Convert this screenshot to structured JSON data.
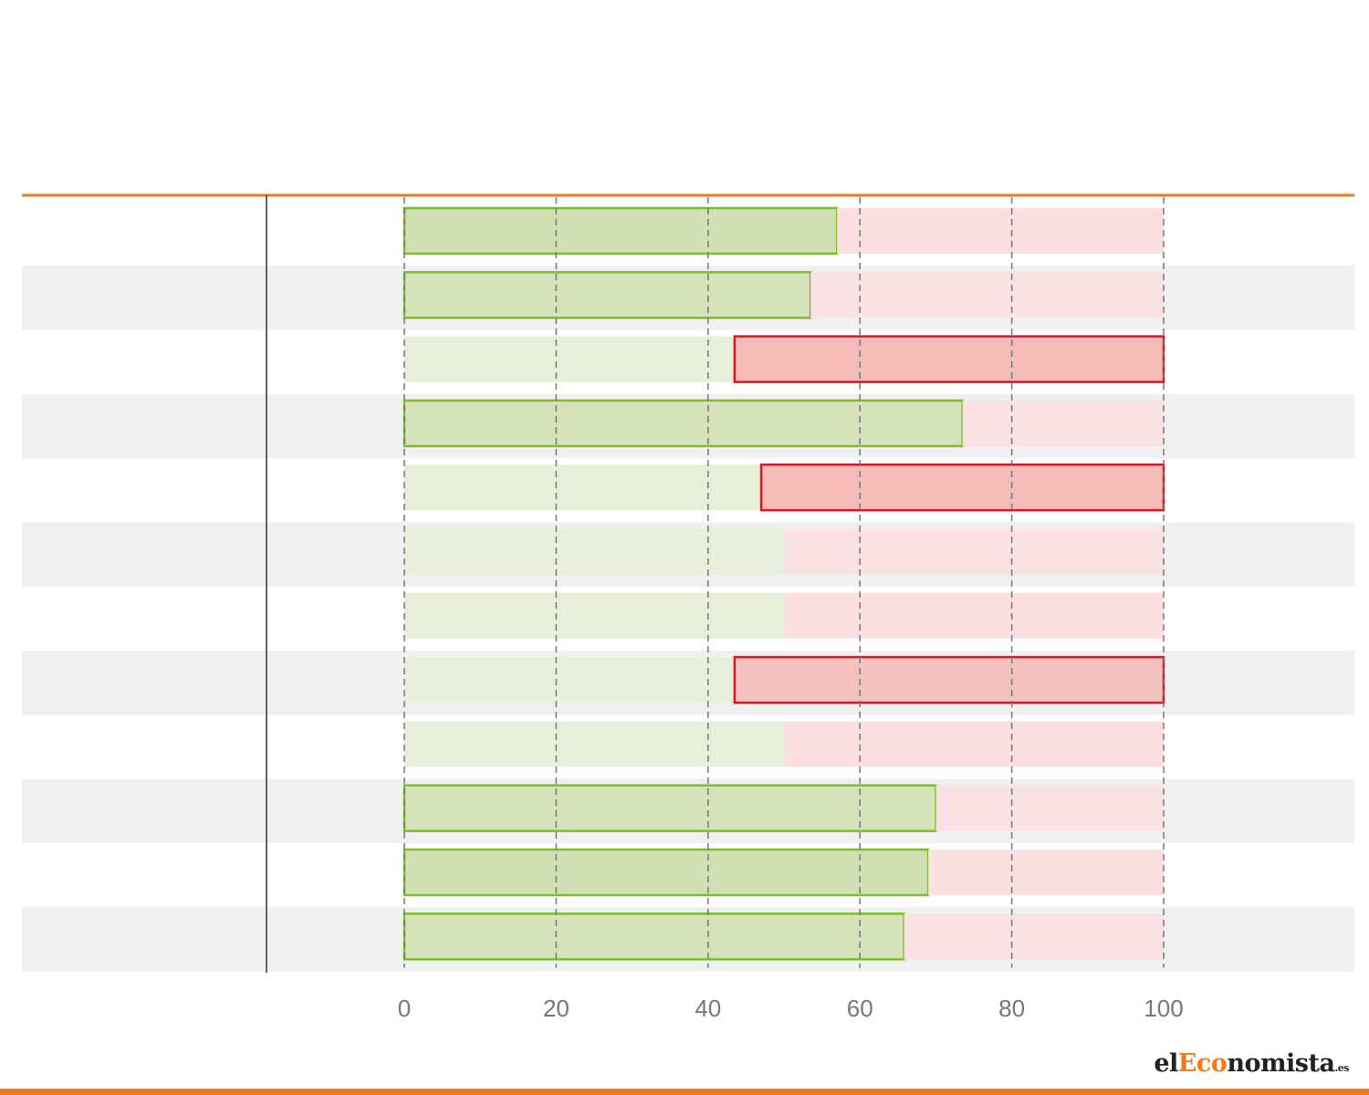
{
  "chart_data": {
    "type": "bar",
    "stacked": true,
    "orientation": "horizontal",
    "title": "",
    "xlabel": "",
    "ylabel": "",
    "xlim": [
      0,
      100
    ],
    "xticks": [
      0,
      20,
      40,
      60,
      80,
      100
    ],
    "grid": true,
    "categories": [
      "",
      "",
      "",
      "",
      "",
      "",
      "",
      "",
      "",
      "",
      "",
      ""
    ],
    "series": [
      {
        "values": [
          57,
          53.5,
          43.5,
          73.5,
          47,
          50,
          50,
          43.5,
          50,
          70,
          69,
          65.8
        ]
      },
      {
        "values": [
          43,
          46.5,
          56.5,
          26.5,
          53,
          50,
          50,
          56.5,
          50,
          30,
          31,
          34.2
        ]
      }
    ],
    "winner": [
      "green",
      "green",
      "red",
      "green",
      "red",
      "none",
      "none",
      "red",
      "none",
      "green",
      "green",
      "green"
    ]
  },
  "colors": {
    "accent": "#f07a1a",
    "green_fill": "#d1e0b4",
    "green_stroke": "#7bbf2e",
    "green_faint": "#e7efda",
    "red_fill": "#f4bbb9",
    "red_stroke": "#e0141e",
    "red_faint": "#fbdfe1",
    "row_band": "#f0f0f0",
    "grid": "#777777"
  },
  "logo": {
    "prefix": "el",
    "accent": "Eco",
    "suffix": "nomista",
    "tld": ".es"
  }
}
